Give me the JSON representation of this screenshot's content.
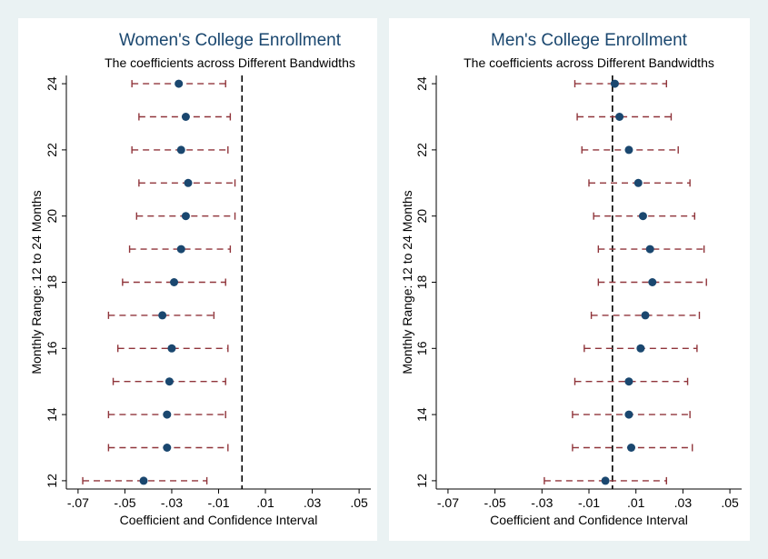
{
  "colors": {
    "background": "#eaf2f3",
    "panel": "#ffffff",
    "title": "#1a476f",
    "point": "#1a476f",
    "ci": "#90353b",
    "axis": "#000000",
    "reference_line": "#000000"
  },
  "chart_data": [
    {
      "type": "scatter",
      "subtype": "coefficient-plot",
      "title": "Women's College Enrollment",
      "subtitle": "The coefficients across Different Bandwidths",
      "xlabel": "Coefficient and Confidence Interval",
      "ylabel": "Monthly Range: 12 to 24 Months",
      "xlim": [
        -0.075,
        0.055
      ],
      "ylim": [
        11.75,
        24.25
      ],
      "x_ticks": [
        -0.07,
        -0.05,
        -0.03,
        -0.01,
        0.01,
        0.03,
        0.05
      ],
      "x_tick_labels": [
        "-.07",
        "-.05",
        "-.03",
        "-.01",
        ".01",
        ".03",
        ".05"
      ],
      "y_ticks": [
        12,
        14,
        16,
        18,
        20,
        22,
        24
      ],
      "y_tick_labels": [
        "12",
        "14",
        "16",
        "18",
        "20",
        "22",
        "24"
      ],
      "reference_line_x": 0,
      "grid": false,
      "legend": "none",
      "points": [
        {
          "y": 12,
          "coef": -0.042,
          "lo": -0.068,
          "hi": -0.015
        },
        {
          "y": 13,
          "coef": -0.032,
          "lo": -0.057,
          "hi": -0.006
        },
        {
          "y": 14,
          "coef": -0.032,
          "lo": -0.057,
          "hi": -0.007
        },
        {
          "y": 15,
          "coef": -0.031,
          "lo": -0.055,
          "hi": -0.007
        },
        {
          "y": 16,
          "coef": -0.03,
          "lo": -0.053,
          "hi": -0.006
        },
        {
          "y": 17,
          "coef": -0.034,
          "lo": -0.057,
          "hi": -0.012
        },
        {
          "y": 18,
          "coef": -0.029,
          "lo": -0.051,
          "hi": -0.007
        },
        {
          "y": 19,
          "coef": -0.026,
          "lo": -0.048,
          "hi": -0.005
        },
        {
          "y": 20,
          "coef": -0.024,
          "lo": -0.045,
          "hi": -0.003
        },
        {
          "y": 21,
          "coef": -0.023,
          "lo": -0.044,
          "hi": -0.003
        },
        {
          "y": 22,
          "coef": -0.026,
          "lo": -0.047,
          "hi": -0.006
        },
        {
          "y": 23,
          "coef": -0.024,
          "lo": -0.044,
          "hi": -0.005
        },
        {
          "y": 24,
          "coef": -0.027,
          "lo": -0.047,
          "hi": -0.007
        }
      ]
    },
    {
      "type": "scatter",
      "subtype": "coefficient-plot",
      "title": "Men's College Enrollment",
      "subtitle": "The coefficients across Different Bandwidths",
      "xlabel": "Coefficient and Confidence Interval",
      "ylabel": "Monthly Range: 12 to 24 Months",
      "xlim": [
        -0.075,
        0.055
      ],
      "ylim": [
        11.75,
        24.25
      ],
      "x_ticks": [
        -0.07,
        -0.05,
        -0.03,
        -0.01,
        0.01,
        0.03,
        0.05
      ],
      "x_tick_labels": [
        "-.07",
        "-.05",
        "-.03",
        "-.01",
        ".01",
        ".03",
        ".05"
      ],
      "y_ticks": [
        12,
        14,
        16,
        18,
        20,
        22,
        24
      ],
      "y_tick_labels": [
        "12",
        "14",
        "16",
        "18",
        "20",
        "22",
        "24"
      ],
      "reference_line_x": 0,
      "grid": false,
      "legend": "none",
      "points": [
        {
          "y": 12,
          "coef": -0.003,
          "lo": -0.029,
          "hi": 0.023
        },
        {
          "y": 13,
          "coef": 0.008,
          "lo": -0.017,
          "hi": 0.034
        },
        {
          "y": 14,
          "coef": 0.007,
          "lo": -0.017,
          "hi": 0.033
        },
        {
          "y": 15,
          "coef": 0.007,
          "lo": -0.016,
          "hi": 0.032
        },
        {
          "y": 16,
          "coef": 0.012,
          "lo": -0.012,
          "hi": 0.036
        },
        {
          "y": 17,
          "coef": 0.014,
          "lo": -0.009,
          "hi": 0.037
        },
        {
          "y": 18,
          "coef": 0.017,
          "lo": -0.006,
          "hi": 0.04
        },
        {
          "y": 19,
          "coef": 0.016,
          "lo": -0.006,
          "hi": 0.039
        },
        {
          "y": 20,
          "coef": 0.013,
          "lo": -0.008,
          "hi": 0.035
        },
        {
          "y": 21,
          "coef": 0.011,
          "lo": -0.01,
          "hi": 0.033
        },
        {
          "y": 22,
          "coef": 0.007,
          "lo": -0.013,
          "hi": 0.028
        },
        {
          "y": 23,
          "coef": 0.003,
          "lo": -0.015,
          "hi": 0.025
        },
        {
          "y": 24,
          "coef": 0.001,
          "lo": -0.016,
          "hi": 0.023
        }
      ]
    }
  ]
}
